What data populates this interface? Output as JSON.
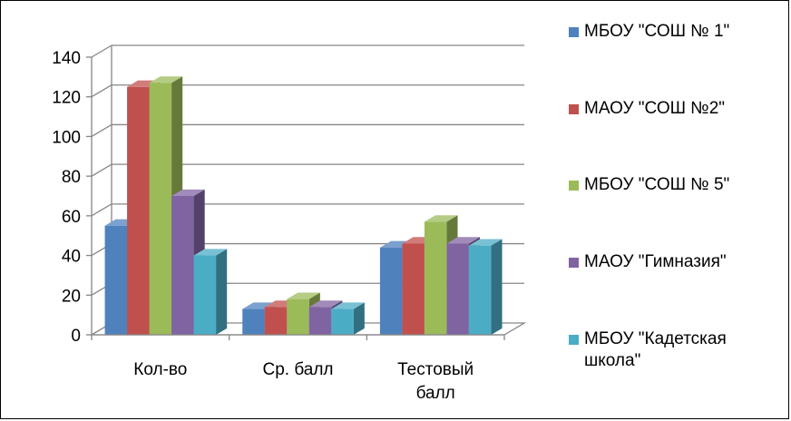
{
  "chart_data": {
    "type": "bar",
    "style": "3d-clustered",
    "categories": [
      "Кол-во",
      "Ср. балл",
      "Тестовый балл"
    ],
    "category_lines": [
      [
        "Кол-во"
      ],
      [
        "Ср. балл"
      ],
      [
        "Тестовый",
        "балл"
      ]
    ],
    "series": [
      {
        "name": "МБОУ \"СОШ № 1\"",
        "color": "#4f81bd",
        "values": [
          55,
          13,
          44
        ]
      },
      {
        "name": "МАОУ \"СОШ №2\"",
        "color": "#c0504d",
        "values": [
          125,
          14,
          46
        ]
      },
      {
        "name": "МБОУ \"СОШ № 5\"",
        "color": "#9bbb59",
        "values": [
          127,
          18,
          57
        ]
      },
      {
        "name": "МАОУ \"Гимназия\"",
        "color": "#8064a2",
        "values": [
          70,
          14,
          46
        ]
      },
      {
        "name": "МБОУ \"Кадетская школа\"",
        "color": "#4bacc6",
        "values": [
          40,
          13,
          45
        ]
      }
    ],
    "legend_lines": [
      [
        "МБОУ \"СОШ № 1\""
      ],
      [
        "МАОУ \"СОШ №2\""
      ],
      [
        "МБОУ \"СОШ № 5\""
      ],
      [
        "МАОУ \"Гимназия\""
      ],
      [
        "МБОУ \"Кадетская",
        "школа\""
      ]
    ],
    "y_ticks": [
      "0",
      "20",
      "40",
      "60",
      "80",
      "100",
      "120",
      "140"
    ],
    "ylim": [
      0,
      140
    ],
    "grid": true,
    "legend_position": "right",
    "title": "",
    "xlabel": "",
    "ylabel": ""
  }
}
